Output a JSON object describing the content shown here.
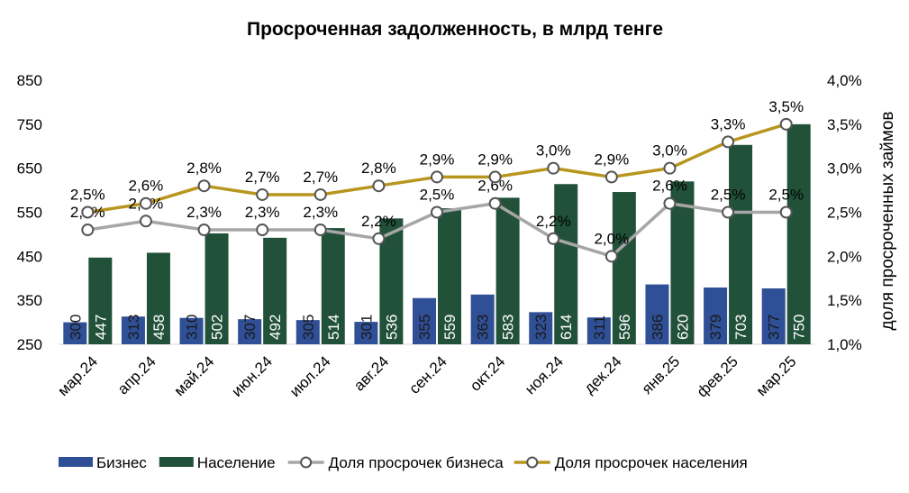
{
  "chart_data": {
    "type": "bar+line",
    "title": "Просроченная задолженность, в млрд тенге",
    "categories": [
      "мар.24",
      "апр.24",
      "май.24",
      "июн.24",
      "июл.24",
      "авг.24",
      "сен.24",
      "окт.24",
      "ноя.24",
      "дек.24",
      "янв.25",
      "фев.25",
      "мар.25"
    ],
    "bar_series": [
      {
        "name": "Бизнес",
        "color": "#2f4f96",
        "values": [
          300,
          313,
          310,
          307,
          305,
          301,
          355,
          363,
          323,
          311,
          386,
          379,
          377
        ],
        "labels": [
          "300",
          "313",
          "310",
          "307",
          "305",
          "301",
          "355",
          "363",
          "323",
          "311",
          "386",
          "379",
          "377"
        ]
      },
      {
        "name": "Население",
        "color": "#22513a",
        "values": [
          447,
          458,
          502,
          492,
          514,
          536,
          559,
          583,
          614,
          596,
          620,
          703,
          750
        ],
        "labels": [
          "447",
          "458",
          "502",
          "492",
          "514",
          "536",
          "559",
          "583",
          "614",
          "596",
          "620",
          "703",
          "750"
        ]
      }
    ],
    "line_series": [
      {
        "name": "Доля просрочек бизнеса",
        "color": "#a6a6a6",
        "values": [
          2.3,
          2.4,
          2.3,
          2.3,
          2.3,
          2.2,
          2.5,
          2.6,
          2.2,
          2.0,
          2.6,
          2.5,
          2.5
        ],
        "labels": [
          "2,3%",
          "2,4%",
          "2,3%",
          "2,3%",
          "2,3%",
          "2,2%",
          "2,5%",
          "2,6%",
          "2,2%",
          "2,0%",
          "2,6%",
          "2,5%",
          "2,5%"
        ]
      },
      {
        "name": "Доля просрочек населения",
        "color": "#b8961e",
        "values": [
          2.5,
          2.6,
          2.8,
          2.7,
          2.7,
          2.8,
          2.9,
          2.9,
          3.0,
          2.9,
          3.0,
          3.3,
          3.5
        ],
        "labels": [
          "2,5%",
          "2,6%",
          "2,8%",
          "2,7%",
          "2,7%",
          "2,8%",
          "2,9%",
          "2,9%",
          "3,0%",
          "2,9%",
          "3,0%",
          "3,3%",
          "3,5%"
        ]
      }
    ],
    "y_left": {
      "min": 250,
      "max": 850,
      "ticks": [
        "850",
        "750",
        "650",
        "550",
        "450",
        "350",
        "250"
      ]
    },
    "y_right": {
      "min": 1.0,
      "max": 4.0,
      "label": "доля просроченных займов",
      "ticks": [
        "4,0%",
        "3,5%",
        "3,0%",
        "2,5%",
        "2,0%",
        "1,5%",
        "1,0%"
      ]
    },
    "grid": false,
    "legend_position": "bottom"
  }
}
